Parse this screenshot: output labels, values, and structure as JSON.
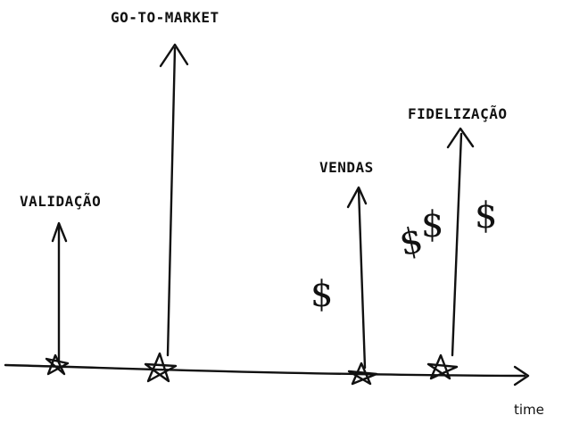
{
  "diagram": {
    "axis_label": "time",
    "milestones": [
      {
        "label": "VALIDAÇÃO"
      },
      {
        "label": "GO-TO-MARKET"
      },
      {
        "label": "VENDAS"
      },
      {
        "label": "FIDELIZAÇÃO"
      }
    ],
    "dollar_symbol": "$",
    "ink_color": "#111111"
  }
}
